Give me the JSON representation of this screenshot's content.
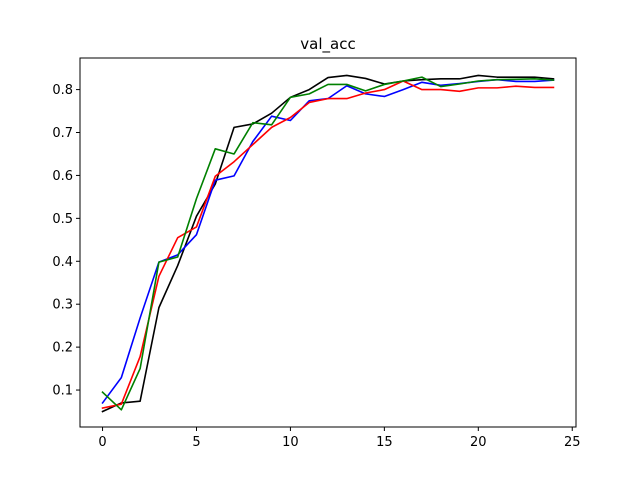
{
  "chart_data": {
    "type": "line",
    "title": "val_acc",
    "xlabel": "",
    "ylabel": "",
    "xlim": [
      -1.2,
      25.2
    ],
    "ylim": [
      0.0139,
      0.8736
    ],
    "xticks": [
      "0",
      "5",
      "10",
      "15",
      "20",
      "25"
    ],
    "yticks": [
      "0.1",
      "0.2",
      "0.3",
      "0.4",
      "0.5",
      "0.6",
      "0.7",
      "0.8"
    ],
    "grid": false,
    "legend": "none",
    "x": [
      0,
      1,
      2,
      3,
      4,
      5,
      6,
      7,
      8,
      9,
      10,
      11,
      12,
      13,
      14,
      15,
      16,
      17,
      18,
      19,
      20,
      21,
      22,
      23,
      24
    ],
    "series": [
      {
        "color": "#000000",
        "values": [
          0.05,
          0.07,
          0.074,
          0.292,
          0.39,
          0.505,
          0.58,
          0.712,
          0.72,
          0.745,
          0.782,
          0.8,
          0.828,
          0.833,
          0.826,
          0.813,
          0.82,
          0.823,
          0.825,
          0.825,
          0.833,
          0.829,
          0.829,
          0.829,
          0.825
        ]
      },
      {
        "color": "#0000ff",
        "values": [
          0.07,
          0.129,
          0.268,
          0.398,
          0.415,
          0.462,
          0.589,
          0.599,
          0.679,
          0.738,
          0.728,
          0.774,
          0.779,
          0.809,
          0.79,
          0.784,
          0.8,
          0.817,
          0.81,
          0.814,
          0.819,
          0.823,
          0.819,
          0.819,
          0.822
        ]
      },
      {
        "color": "#ff0000",
        "values": [
          0.058,
          0.067,
          0.178,
          0.365,
          0.455,
          0.48,
          0.598,
          0.632,
          0.672,
          0.712,
          0.735,
          0.77,
          0.779,
          0.779,
          0.792,
          0.8,
          0.82,
          0.8,
          0.8,
          0.796,
          0.804,
          0.804,
          0.808,
          0.805,
          0.805
        ]
      },
      {
        "color": "#008000",
        "values": [
          0.095,
          0.054,
          0.15,
          0.398,
          0.41,
          0.546,
          0.662,
          0.65,
          0.723,
          0.718,
          0.782,
          0.79,
          0.812,
          0.812,
          0.797,
          0.812,
          0.82,
          0.829,
          0.807,
          0.813,
          0.82,
          0.823,
          0.824,
          0.825,
          0.822
        ]
      }
    ]
  }
}
